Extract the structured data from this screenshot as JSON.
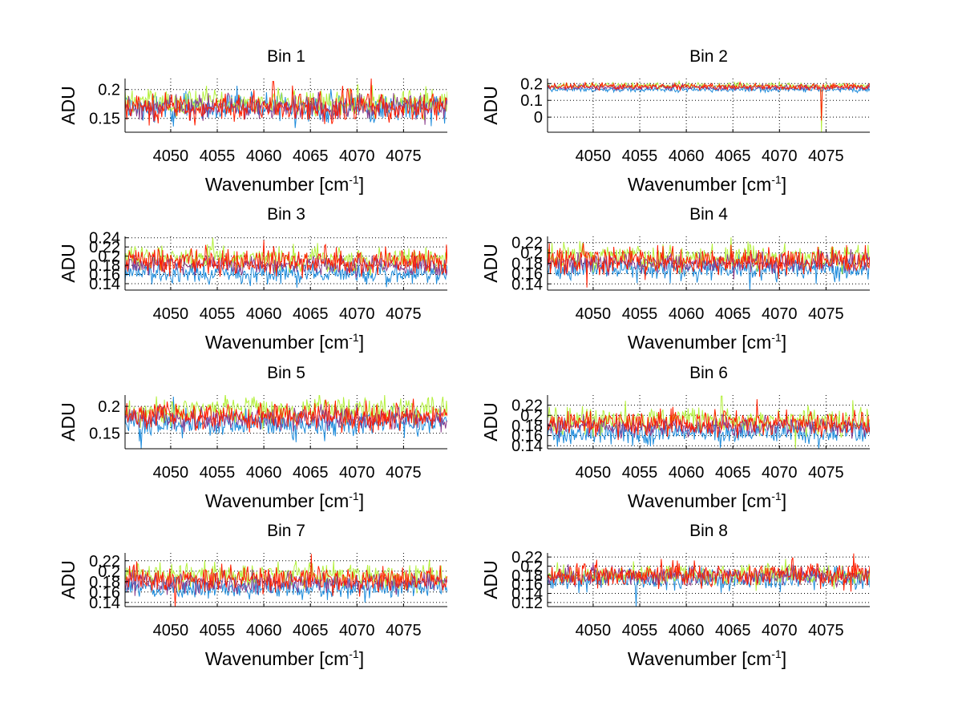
{
  "figure": {
    "background": "#ffffff"
  },
  "chart_data": [
    {
      "type": "line",
      "title": "Bin 1",
      "xlabel": "Wavenumber [cm",
      "xlabel_sup": "-1",
      "xlabel_close": "]",
      "ylabel": "ADU",
      "xlim": [
        4045.1,
        4079.7
      ],
      "ylim": [
        0.126,
        0.219
      ],
      "xticks": [
        4050,
        4055,
        4060,
        4065,
        4070,
        4075
      ],
      "xtick_labels": [
        "4050",
        "4055",
        "4060",
        "4065",
        "4070",
        "4075"
      ],
      "yticks": [
        0.15,
        0.2
      ],
      "ytick_labels": [
        "0.15",
        "0.2"
      ],
      "grid": true,
      "series": [
        {
          "name": "blue",
          "color": "#1e8cdc",
          "mean": 0.168,
          "noise": 0.012,
          "seed": 11
        },
        {
          "name": "green",
          "color": "#b4f03c",
          "mean": 0.178,
          "noise": 0.011,
          "seed": 12
        },
        {
          "name": "purple",
          "color": "#8a3c8c",
          "mean": 0.17,
          "noise": 0.01,
          "seed": 13
        },
        {
          "name": "red",
          "color": "#ff1e00",
          "mean": 0.17,
          "noise": 0.013,
          "seed": 14,
          "spikes": [
            [
              4071.5,
              0.219
            ],
            [
              4061.0,
              0.214
            ]
          ]
        }
      ]
    },
    {
      "type": "line",
      "title": "Bin 2",
      "xlabel": "Wavenumber [cm",
      "xlabel_sup": "-1",
      "xlabel_close": "]",
      "ylabel": "ADU",
      "xlim": [
        4045.1,
        4079.7
      ],
      "ylim": [
        -0.09,
        0.23
      ],
      "xticks": [
        4050,
        4055,
        4060,
        4065,
        4070,
        4075
      ],
      "xtick_labels": [
        "4050",
        "4055",
        "4060",
        "4065",
        "4070",
        "4075"
      ],
      "yticks": [
        0,
        0.1,
        0.2
      ],
      "ytick_labels": [
        "0",
        "0.1",
        "0.2"
      ],
      "grid": true,
      "series": [
        {
          "name": "blue",
          "color": "#1e8cdc",
          "mean": 0.165,
          "noise": 0.008,
          "seed": 21
        },
        {
          "name": "green",
          "color": "#b4f03c",
          "mean": 0.188,
          "noise": 0.008,
          "seed": 22,
          "spikes": [
            [
              4074.5,
              -0.09
            ]
          ]
        },
        {
          "name": "purple",
          "color": "#8a3c8c",
          "mean": 0.178,
          "noise": 0.008,
          "seed": 23
        },
        {
          "name": "red",
          "color": "#ff1e00",
          "mean": 0.182,
          "noise": 0.01,
          "seed": 24,
          "spikes": [
            [
              4074.5,
              -0.02
            ]
          ]
        }
      ]
    },
    {
      "type": "line",
      "title": "Bin 3",
      "xlabel": "Wavenumber [cm",
      "xlabel_sup": "-1",
      "xlabel_close": "]",
      "ylabel": "ADU",
      "xlim": [
        4045.1,
        4079.7
      ],
      "ylim": [
        0.126,
        0.243
      ],
      "xticks": [
        4050,
        4055,
        4060,
        4065,
        4070,
        4075
      ],
      "xtick_labels": [
        "4050",
        "4055",
        "4060",
        "4065",
        "4070",
        "4075"
      ],
      "yticks": [
        0.14,
        0.16,
        0.18,
        0.2,
        0.22,
        0.24
      ],
      "ytick_labels": [
        "0.14",
        "0.16",
        "0.18",
        "0.2",
        "0.22",
        "0.24"
      ],
      "grid": true,
      "series": [
        {
          "name": "blue",
          "color": "#1e8cdc",
          "mean": 0.162,
          "noise": 0.011,
          "seed": 31
        },
        {
          "name": "green",
          "color": "#b4f03c",
          "mean": 0.195,
          "noise": 0.014,
          "seed": 32,
          "spikes": [
            [
              4054.5,
              0.24
            ]
          ]
        },
        {
          "name": "purple",
          "color": "#8a3c8c",
          "mean": 0.18,
          "noise": 0.01,
          "seed": 33
        },
        {
          "name": "red",
          "color": "#ff1e00",
          "mean": 0.19,
          "noise": 0.014,
          "seed": 34,
          "spikes": [
            [
              4060.0,
              0.235
            ]
          ]
        }
      ]
    },
    {
      "type": "line",
      "title": "Bin 4",
      "xlabel": "Wavenumber [cm",
      "xlabel_sup": "-1",
      "xlabel_close": "]",
      "ylabel": "ADU",
      "xlim": [
        4045.1,
        4079.7
      ],
      "ylim": [
        0.128,
        0.232
      ],
      "xticks": [
        4050,
        4055,
        4060,
        4065,
        4070,
        4075
      ],
      "xtick_labels": [
        "4050",
        "4055",
        "4060",
        "4065",
        "4070",
        "4075"
      ],
      "yticks": [
        0.14,
        0.16,
        0.18,
        0.2,
        0.22
      ],
      "ytick_labels": [
        "0.14",
        "0.16",
        "0.18",
        "0.2",
        "0.22"
      ],
      "grid": true,
      "series": [
        {
          "name": "blue",
          "color": "#1e8cdc",
          "mean": 0.168,
          "noise": 0.011,
          "seed": 41,
          "spikes": [
            [
              4066.8,
              0.128
            ]
          ]
        },
        {
          "name": "green",
          "color": "#b4f03c",
          "mean": 0.192,
          "noise": 0.012,
          "seed": 42,
          "spikes": [
            [
              4064.8,
              0.23
            ]
          ]
        },
        {
          "name": "purple",
          "color": "#8a3c8c",
          "mean": 0.18,
          "noise": 0.01,
          "seed": 43
        },
        {
          "name": "red",
          "color": "#ff1e00",
          "mean": 0.185,
          "noise": 0.012,
          "seed": 44,
          "spikes": [
            [
              4049.3,
              0.133
            ]
          ]
        }
      ]
    },
    {
      "type": "line",
      "title": "Bin 5",
      "xlabel": "Wavenumber [cm",
      "xlabel_sup": "-1",
      "xlabel_close": "]",
      "ylabel": "ADU",
      "xlim": [
        4045.1,
        4079.7
      ],
      "ylim": [
        0.121,
        0.221
      ],
      "xticks": [
        4050,
        4055,
        4060,
        4065,
        4070,
        4075
      ],
      "xtick_labels": [
        "4050",
        "4055",
        "4060",
        "4065",
        "4070",
        "4075"
      ],
      "yticks": [
        0.15,
        0.2
      ],
      "ytick_labels": [
        "0.15",
        "0.2"
      ],
      "grid": true,
      "series": [
        {
          "name": "blue",
          "color": "#1e8cdc",
          "mean": 0.168,
          "noise": 0.012,
          "seed": 51,
          "spikes": [
            [
              4046.8,
              0.121
            ],
            [
              4050.3,
              0.218
            ]
          ]
        },
        {
          "name": "green",
          "color": "#b4f03c",
          "mean": 0.192,
          "noise": 0.012,
          "seed": 52
        },
        {
          "name": "purple",
          "color": "#8a3c8c",
          "mean": 0.178,
          "noise": 0.01,
          "seed": 53
        },
        {
          "name": "red",
          "color": "#ff1e00",
          "mean": 0.182,
          "noise": 0.012,
          "seed": 54
        }
      ]
    },
    {
      "type": "line",
      "title": "Bin 6",
      "xlabel": "Wavenumber [cm",
      "xlabel_sup": "-1",
      "xlabel_close": "]",
      "ylabel": "ADU",
      "xlim": [
        4045.1,
        4079.7
      ],
      "ylim": [
        0.134,
        0.24
      ],
      "xticks": [
        4050,
        4055,
        4060,
        4065,
        4070,
        4075
      ],
      "xtick_labels": [
        "4050",
        "4055",
        "4060",
        "4065",
        "4070",
        "4075"
      ],
      "yticks": [
        0.14,
        0.16,
        0.18,
        0.2,
        0.22
      ],
      "ytick_labels": [
        "0.14",
        "0.16",
        "0.18",
        "0.2",
        "0.22"
      ],
      "grid": true,
      "series": [
        {
          "name": "blue",
          "color": "#1e8cdc",
          "mean": 0.165,
          "noise": 0.011,
          "seed": 61
        },
        {
          "name": "green",
          "color": "#b4f03c",
          "mean": 0.19,
          "noise": 0.013,
          "seed": 62,
          "spikes": [
            [
              4063.8,
              0.238
            ],
            [
              4071.7,
              0.135
            ]
          ]
        },
        {
          "name": "purple",
          "color": "#8a3c8c",
          "mean": 0.178,
          "noise": 0.01,
          "seed": 63
        },
        {
          "name": "red",
          "color": "#ff1e00",
          "mean": 0.185,
          "noise": 0.013,
          "seed": 64,
          "spikes": [
            [
              4067.6,
              0.232
            ]
          ]
        }
      ]
    },
    {
      "type": "line",
      "title": "Bin 7",
      "xlabel": "Wavenumber [cm",
      "xlabel_sup": "-1",
      "xlabel_close": "]",
      "ylabel": "ADU",
      "xlim": [
        4045.1,
        4079.7
      ],
      "ylim": [
        0.132,
        0.235
      ],
      "xticks": [
        4050,
        4055,
        4060,
        4065,
        4070,
        4075
      ],
      "xtick_labels": [
        "4050",
        "4055",
        "4060",
        "4065",
        "4070",
        "4075"
      ],
      "yticks": [
        0.14,
        0.16,
        0.18,
        0.2,
        0.22
      ],
      "ytick_labels": [
        "0.14",
        "0.16",
        "0.18",
        "0.2",
        "0.22"
      ],
      "grid": true,
      "series": [
        {
          "name": "blue",
          "color": "#1e8cdc",
          "mean": 0.168,
          "noise": 0.01,
          "seed": 71
        },
        {
          "name": "green",
          "color": "#b4f03c",
          "mean": 0.192,
          "noise": 0.012,
          "seed": 72
        },
        {
          "name": "purple",
          "color": "#8a3c8c",
          "mean": 0.178,
          "noise": 0.01,
          "seed": 73
        },
        {
          "name": "red",
          "color": "#ff1e00",
          "mean": 0.185,
          "noise": 0.012,
          "seed": 74,
          "spikes": [
            [
              4050.5,
              0.132
            ],
            [
              4065.1,
              0.233
            ]
          ]
        }
      ]
    },
    {
      "type": "line",
      "title": "Bin 8",
      "xlabel": "Wavenumber [cm",
      "xlabel_sup": "-1",
      "xlabel_close": "]",
      "ylabel": "ADU",
      "xlim": [
        4045.1,
        4079.7
      ],
      "ylim": [
        0.111,
        0.229
      ],
      "xticks": [
        4050,
        4055,
        4060,
        4065,
        4070,
        4075
      ],
      "xtick_labels": [
        "4050",
        "4055",
        "4060",
        "4065",
        "4070",
        "4075"
      ],
      "yticks": [
        0.12,
        0.14,
        0.16,
        0.18,
        0.2,
        0.22
      ],
      "ytick_labels": [
        "0.12",
        "0.14",
        "0.16",
        "0.18",
        "0.2",
        "0.22"
      ],
      "grid": true,
      "series": [
        {
          "name": "blue",
          "color": "#1e8cdc",
          "mean": 0.172,
          "noise": 0.012,
          "seed": 81,
          "spikes": [
            [
              4054.6,
              0.111
            ]
          ]
        },
        {
          "name": "green",
          "color": "#b4f03c",
          "mean": 0.18,
          "noise": 0.011,
          "seed": 82
        },
        {
          "name": "purple",
          "color": "#8a3c8c",
          "mean": 0.178,
          "noise": 0.01,
          "seed": 83
        },
        {
          "name": "red",
          "color": "#ff1e00",
          "mean": 0.18,
          "noise": 0.013,
          "seed": 84,
          "spikes": [
            [
              4078.0,
              0.228
            ]
          ]
        }
      ]
    }
  ]
}
